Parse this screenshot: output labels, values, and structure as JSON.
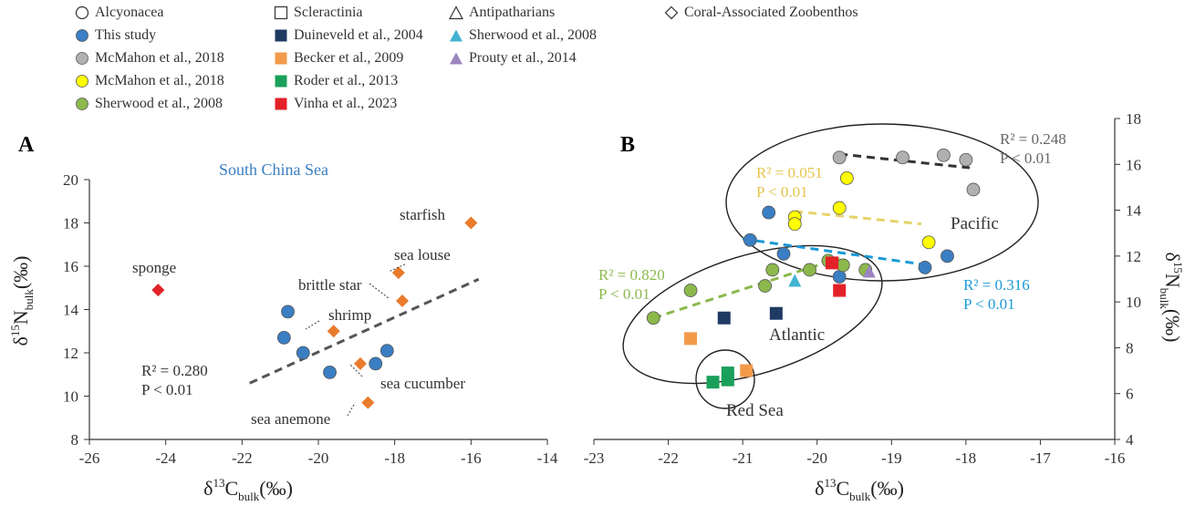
{
  "legend": {
    "columns": [
      {
        "header": {
          "label": "Alcyonacea",
          "shape": "circle"
        },
        "entries": [
          {
            "label": "This study",
            "color": "#3a7ec3"
          },
          {
            "label": "McMahon et al., 2018",
            "color": "#b0b0b0"
          },
          {
            "label": "McMahon et al., 2018",
            "color": "#ffff00"
          },
          {
            "label": "Sherwood et al., 2008",
            "color": "#8cb84c"
          }
        ]
      },
      {
        "header": {
          "label": "Scleractinia",
          "shape": "square"
        },
        "entries": [
          {
            "label": "Duineveld et al., 2004",
            "color": "#1f3a63"
          },
          {
            "label": "Becker et al., 2009",
            "color": "#f39a4a"
          },
          {
            "label": "Roder et al., 2013",
            "color": "#1aa05a"
          },
          {
            "label": "Vinha et al., 2023",
            "color": "#e32128"
          }
        ]
      },
      {
        "header": {
          "label": "Antipatharians",
          "shape": "triangle"
        },
        "entries": [
          {
            "label": "Sherwood et al., 2008",
            "color": "#3fb3d0"
          },
          {
            "label": "Prouty et al., 2014",
            "color": "#9b84c0"
          }
        ]
      },
      {
        "header": {
          "label": "Coral-Associated Zoobenthos",
          "shape": "diamond"
        },
        "entries": []
      }
    ]
  },
  "chart_data": [
    {
      "panel_label": "A",
      "type": "scatter",
      "title": "South China Sea",
      "xlabel": {
        "base": "δ",
        "sup": "13",
        "main": "C",
        "sub": "bulk",
        "unit": "(‰)"
      },
      "ylabel": {
        "base": "δ",
        "sup": "15",
        "main": "N",
        "sub": "bulk",
        "unit": "(‰)"
      },
      "xlim": [
        -26,
        -14
      ],
      "ylim": [
        8,
        20
      ],
      "xticks": [
        -26,
        -24,
        -22,
        -20,
        -18,
        -16,
        -14
      ],
      "yticks": [
        8,
        10,
        12,
        14,
        16,
        18,
        20
      ],
      "series": [
        {
          "name": "This study",
          "marker": "circle",
          "color": "#3a7ec3",
          "points": [
            [
              -20.8,
              13.9
            ],
            [
              -20.9,
              12.7
            ],
            [
              -20.4,
              12.0
            ],
            [
              -19.7,
              11.1
            ],
            [
              -18.2,
              12.1
            ],
            [
              -18.5,
              11.5
            ]
          ]
        },
        {
          "name": "sponge",
          "marker": "diamond",
          "color": "#e32128",
          "points": [
            [
              -24.2,
              14.9
            ]
          ]
        },
        {
          "name": "Coral-Associated Zoobenthos",
          "marker": "diamond",
          "color": "#ea7b2c",
          "points": [
            [
              -16.0,
              18.0
            ],
            [
              -17.9,
              15.7
            ],
            [
              -17.8,
              14.4
            ],
            [
              -19.6,
              13.0
            ],
            [
              -18.9,
              11.5
            ],
            [
              -18.7,
              9.7
            ]
          ]
        }
      ],
      "point_labels": [
        {
          "text": "sponge"
        },
        {
          "text": "starfish"
        },
        {
          "text": "sea louse"
        },
        {
          "text": "brittle star"
        },
        {
          "text": "shrimp"
        },
        {
          "text": "sea cucumber"
        },
        {
          "text": "sea anemone"
        }
      ],
      "trendlines": [
        {
          "x": [
            -21.8,
            -15.8
          ],
          "y": [
            10.6,
            15.4
          ],
          "color": "#555555"
        }
      ],
      "stats": [
        {
          "r2": "R² = 0.280",
          "p": "P < 0.01"
        }
      ]
    },
    {
      "panel_label": "B",
      "type": "scatter",
      "xlabel": {
        "base": "δ",
        "sup": "13",
        "main": "C",
        "sub": "bulk",
        "unit": "(‰)"
      },
      "ylabel": {
        "base": "δ",
        "sup": "15",
        "main": "N",
        "sub": "bulk",
        "unit": "(‰)"
      },
      "xlim": [
        -23,
        -16
      ],
      "ylim": [
        4,
        18
      ],
      "xticks": [
        -23,
        -22,
        -21,
        -20,
        -19,
        -18,
        -17,
        -16
      ],
      "yticks": [
        4,
        6,
        8,
        10,
        12,
        14,
        16,
        18
      ],
      "yaxis_side": "right",
      "series": [
        {
          "name": "This study",
          "marker": "circle",
          "color": "#3a7ec3",
          "points": [
            [
              -20.65,
              13.9
            ],
            [
              -20.9,
              12.7
            ],
            [
              -20.45,
              12.1
            ],
            [
              -19.7,
              11.1
            ],
            [
              -18.55,
              11.5
            ],
            [
              -18.25,
              12.0
            ]
          ]
        },
        {
          "name": "McMahon et al., 2018 (grey)",
          "marker": "circle",
          "color": "#b0b0b0",
          "points": [
            [
              -19.7,
              16.3
            ],
            [
              -18.85,
              16.3
            ],
            [
              -18.3,
              16.4
            ],
            [
              -18.0,
              16.2
            ],
            [
              -17.9,
              14.9
            ]
          ]
        },
        {
          "name": "McMahon et al., 2018 (yellow)",
          "marker": "circle",
          "color": "#ffff00",
          "points": [
            [
              -19.6,
              15.4
            ],
            [
              -19.7,
              14.1
            ],
            [
              -20.3,
              13.7
            ],
            [
              -20.3,
              13.4
            ],
            [
              -18.5,
              12.6
            ]
          ]
        },
        {
          "name": "Sherwood et al., 2008",
          "marker": "circle",
          "color": "#8cb84c",
          "points": [
            [
              -22.2,
              9.3
            ],
            [
              -21.7,
              10.5
            ],
            [
              -20.7,
              10.7
            ],
            [
              -20.6,
              11.4
            ],
            [
              -20.1,
              11.4
            ],
            [
              -19.85,
              11.8
            ],
            [
              -19.65,
              11.6
            ],
            [
              -19.35,
              11.4
            ]
          ]
        },
        {
          "name": "Duineveld et al., 2004",
          "marker": "square",
          "color": "#1f3a63",
          "points": [
            [
              -21.25,
              9.3
            ],
            [
              -20.55,
              9.5
            ]
          ]
        },
        {
          "name": "Becker et al., 2009",
          "marker": "square",
          "color": "#f39a4a",
          "points": [
            [
              -21.7,
              8.4
            ],
            [
              -20.95,
              7.0
            ]
          ]
        },
        {
          "name": "Roder et al., 2013",
          "marker": "square",
          "color": "#1aa05a",
          "points": [
            [
              -21.4,
              6.5
            ],
            [
              -21.2,
              6.6
            ],
            [
              -21.2,
              6.9
            ]
          ]
        },
        {
          "name": "Vinha et al., 2023",
          "marker": "square",
          "color": "#e32128",
          "points": [
            [
              -19.8,
              11.7
            ],
            [
              -19.7,
              10.5
            ]
          ]
        },
        {
          "name": "Sherwood et al., 2008 (Antipatharians)",
          "marker": "triangle",
          "color": "#3fb3d0",
          "points": [
            [
              -20.3,
              10.9
            ]
          ]
        },
        {
          "name": "Prouty et al., 2014",
          "marker": "triangle",
          "color": "#9b84c0",
          "points": [
            [
              -19.3,
              11.3
            ]
          ]
        }
      ],
      "trendlines": [
        {
          "x": [
            -19.7,
            -17.95
          ],
          "y": [
            16.45,
            15.85
          ],
          "color": "#333333"
        },
        {
          "x": [
            -20.3,
            -18.6
          ],
          "y": [
            13.95,
            13.4
          ],
          "color": "#e6d36a"
        },
        {
          "x": [
            -21.0,
            -18.5
          ],
          "y": [
            12.75,
            11.6
          ],
          "color": "#1a9ad6"
        },
        {
          "x": [
            -22.2,
            -19.7
          ],
          "y": [
            9.3,
            11.9
          ],
          "color": "#8cb84c"
        }
      ],
      "stats": [
        {
          "r2": "R² = 0.248",
          "p": "P < 0.01",
          "color": "#666666"
        },
        {
          "r2": "R² = 0.051",
          "p": "P < 0.01",
          "color": "#e6c34a"
        },
        {
          "r2": "R² = 0.316",
          "p": "P < 0.01",
          "color": "#1a9ad6"
        },
        {
          "r2": "R² = 0.820",
          "p": "P < 0.01",
          "color": "#8cb84c"
        }
      ],
      "regions": [
        {
          "label": "Pacific"
        },
        {
          "label": "Atlantic"
        },
        {
          "label": "Red Sea"
        }
      ]
    }
  ]
}
